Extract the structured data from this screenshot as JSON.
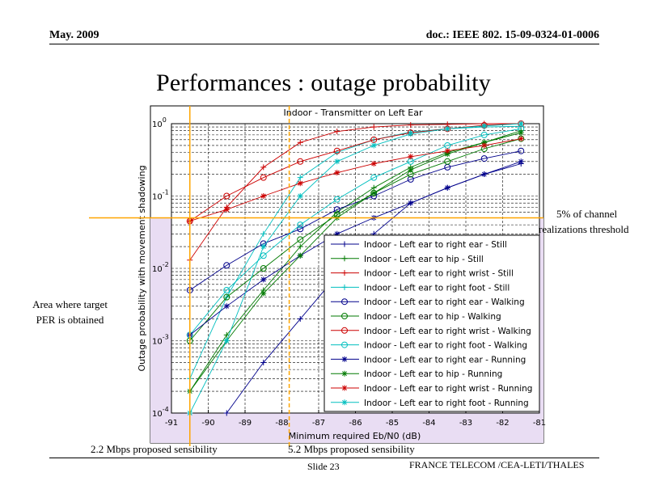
{
  "header": {
    "date": "May. 2009",
    "doc": "doc.: IEEE 802. 15-09-0324-01-0006"
  },
  "slide": {
    "title": "Performances : outage probability",
    "number": "Slide 23",
    "footer": "FRANCE TELECOM /CEA-LETI/THALES"
  },
  "annotations": {
    "threshold_1": "5% of channel",
    "threshold_2": "realizations threshold",
    "area_1": "Area where target",
    "area_2": "PER is obtained",
    "sens_22": "2.2 Mbps proposed sensibility",
    "sens_52": "5.2 Mbps proposed sensibility"
  },
  "colors": {
    "blue": "#00008B",
    "green": "#007A00",
    "red": "#CC0000",
    "cyan": "#00BFBF",
    "orange": "#FFA500",
    "highlight": "#E9DDF3"
  },
  "chart_data": {
    "type": "line",
    "title": "Indoor - Transmitter on Left Ear",
    "xlabel": "Minimum required Eb/N0 (dB)",
    "ylabel": "Outage probability with movement shadowing",
    "xlim": [
      -91,
      -81
    ],
    "ylim": [
      0.0001,
      1
    ],
    "yscale": "log",
    "grid": true,
    "legend_position": "lower-right",
    "x_ticks": [
      "-91",
      "-90",
      "-89",
      "-88",
      "-87",
      "-86",
      "-85",
      "-84",
      "-83",
      "-82",
      "-81"
    ],
    "y_ticks": [
      {
        "base": "10",
        "exp": "0",
        "value": 1
      },
      {
        "base": "10",
        "exp": "-1",
        "value": 0.1
      },
      {
        "base": "10",
        "exp": "-2",
        "value": 0.01
      },
      {
        "base": "10",
        "exp": "-3",
        "value": 0.001
      },
      {
        "base": "10",
        "exp": "-4",
        "value": 0.0001
      }
    ],
    "threshold_y": 0.05,
    "sensitivity_x": [
      -90.5,
      -87.8
    ],
    "x": [
      -90.5,
      -89.5,
      -88.5,
      -87.5,
      -86.5,
      -85.5,
      -84.5,
      -83.5,
      -82.5,
      -81.5
    ],
    "series": [
      {
        "name": "Indoor - Left ear to right ear - Still",
        "color": "blue",
        "marker": "plus",
        "values": [
          null,
          0.0001,
          0.0005,
          0.002,
          0.008,
          0.03,
          0.08,
          0.13,
          0.2,
          0.28
        ]
      },
      {
        "name": "Indoor - Left ear to hip - Still",
        "color": "green",
        "marker": "plus",
        "values": [
          0.0002,
          0.0012,
          0.005,
          0.02,
          0.06,
          0.13,
          0.25,
          0.4,
          0.55,
          0.8
        ]
      },
      {
        "name": "Indoor - Left ear to right wrist - Still",
        "color": "red",
        "marker": "plus",
        "values": [
          0.013,
          0.07,
          0.25,
          0.55,
          0.78,
          0.9,
          0.96,
          0.98,
          1,
          1
        ]
      },
      {
        "name": "Indoor - Left ear to right foot - Still",
        "color": "cyan",
        "marker": "plus",
        "values": [
          0.0003,
          0.004,
          0.03,
          0.18,
          0.4,
          0.6,
          0.77,
          0.85,
          0.9,
          0.92
        ]
      },
      {
        "name": "Indoor - Left ear to right ear - Walking",
        "color": "blue",
        "marker": "circle",
        "values": [
          0.005,
          0.011,
          0.022,
          0.035,
          0.065,
          0.1,
          0.17,
          0.25,
          0.33,
          0.42
        ]
      },
      {
        "name": "Indoor - Left ear to hip - Walking",
        "color": "green",
        "marker": "circle",
        "values": [
          0.001,
          0.004,
          0.01,
          0.025,
          0.055,
          0.11,
          0.2,
          0.3,
          0.45,
          0.62
        ]
      },
      {
        "name": "Indoor - Left ear to right wrist - Walking",
        "color": "red",
        "marker": "circle",
        "values": [
          0.045,
          0.1,
          0.18,
          0.3,
          0.42,
          0.6,
          0.75,
          0.85,
          0.95,
          1
        ]
      },
      {
        "name": "Indoor - Left ear to right foot - Walking",
        "color": "cyan",
        "marker": "circle",
        "values": [
          0.0012,
          0.005,
          0.015,
          0.04,
          0.09,
          0.18,
          0.3,
          0.5,
          0.7,
          0.85
        ]
      },
      {
        "name": "Indoor - Left ear to right ear - Running",
        "color": "blue",
        "marker": "star",
        "values": [
          0.0012,
          0.003,
          0.007,
          0.015,
          0.03,
          0.05,
          0.08,
          0.13,
          0.2,
          0.3
        ]
      },
      {
        "name": "Indoor - Left ear to hip - Running",
        "color": "green",
        "marker": "star",
        "values": [
          0.0002,
          0.001,
          0.0045,
          0.015,
          0.05,
          0.11,
          0.23,
          0.38,
          0.55,
          0.75
        ]
      },
      {
        "name": "Indoor - Left ear to right wrist - Running",
        "color": "red",
        "marker": "star",
        "values": [
          0.045,
          0.065,
          0.1,
          0.15,
          0.21,
          0.28,
          0.35,
          0.42,
          0.5,
          0.62
        ]
      },
      {
        "name": "Indoor - Left ear to right foot - Running",
        "color": "cyan",
        "marker": "star",
        "values": [
          0.0001,
          0.001,
          0.02,
          0.1,
          0.3,
          0.5,
          0.72,
          0.85,
          0.93,
          1
        ]
      }
    ]
  }
}
